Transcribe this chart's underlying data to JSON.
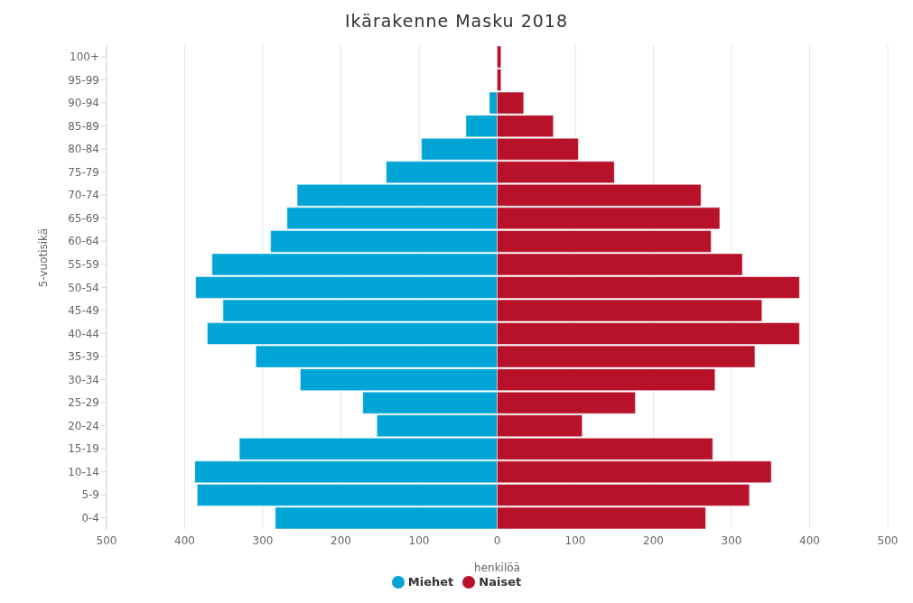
{
  "chart_data": {
    "type": "bar",
    "orientation": "horizontal",
    "title": "Ikärakenne Masku 2018",
    "xlabel": "henkilöä",
    "ylabel": "5-vuotisikä",
    "categories": [
      "100+",
      "95-99",
      "90-94",
      "85-89",
      "80-84",
      "75-79",
      "70-74",
      "65-69",
      "60-64",
      "55-59",
      "50-54",
      "45-49",
      "40-44",
      "35-39",
      "30-34",
      "25-29",
      "20-24",
      "15-19",
      "10-14",
      "5-9",
      "0-4"
    ],
    "series": [
      {
        "name": "Miehet",
        "color": "#00a5d6",
        "values": [
          0,
          0,
          -10,
          -40,
          -97,
          -142,
          -256,
          -269,
          -290,
          -365,
          -386,
          -351,
          -371,
          -309,
          -252,
          -172,
          -154,
          -330,
          -387,
          -384,
          -284
        ]
      },
      {
        "name": "Naiset",
        "color": "#b8122a",
        "values": [
          5,
          5,
          34,
          72,
          104,
          150,
          261,
          285,
          274,
          314,
          387,
          339,
          387,
          330,
          279,
          177,
          109,
          276,
          351,
          323,
          267
        ]
      }
    ],
    "xlim": [
      -500,
      500
    ],
    "xticks": [
      {
        "value": -500,
        "label": "500"
      },
      {
        "value": -400,
        "label": "400"
      },
      {
        "value": -300,
        "label": "300"
      },
      {
        "value": -200,
        "label": "200"
      },
      {
        "value": -100,
        "label": "100"
      },
      0,
      100,
      200,
      300,
      400,
      500
    ],
    "stacked": true,
    "grid": "x",
    "legend": "bottom"
  }
}
